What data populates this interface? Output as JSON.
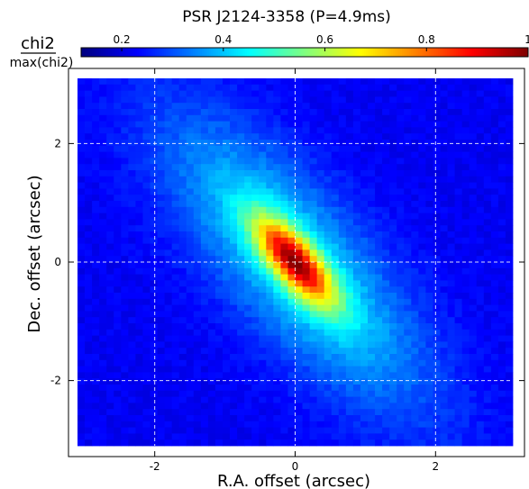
{
  "chart_data": {
    "type": "heatmap",
    "title": "PSR J2124-3358 (P=4.9ms)",
    "xlabel": "R.A. offset (arcsec)",
    "ylabel": "Dec. offset (arcsec)",
    "xlim": [
      -3.1,
      3.1
    ],
    "ylim": [
      -3.1,
      3.1
    ],
    "xticks": [
      -2,
      0,
      2
    ],
    "yticks": [
      -2,
      0,
      2
    ],
    "grid": true,
    "colorbar": {
      "label_numerator": "chi2",
      "label_denominator": "max(chi2)",
      "range": [
        0.12,
        1.0
      ],
      "ticks": [
        0.2,
        0.4,
        0.6,
        0.8,
        1
      ],
      "colormap": "jet",
      "placement": "top"
    },
    "peak": {
      "x": 0.0,
      "y": 0.0,
      "value": 1.0
    },
    "structure": {
      "background": 0.22,
      "outer_halo": {
        "amplitude": 0.23,
        "sigma_major": 2.0,
        "sigma_minor": 0.7,
        "angle_deg": -55
      },
      "inner_core": {
        "amplitude": 0.55,
        "sigma_major": 0.6,
        "sigma_minor": 0.22,
        "angle_deg": -55
      }
    }
  }
}
